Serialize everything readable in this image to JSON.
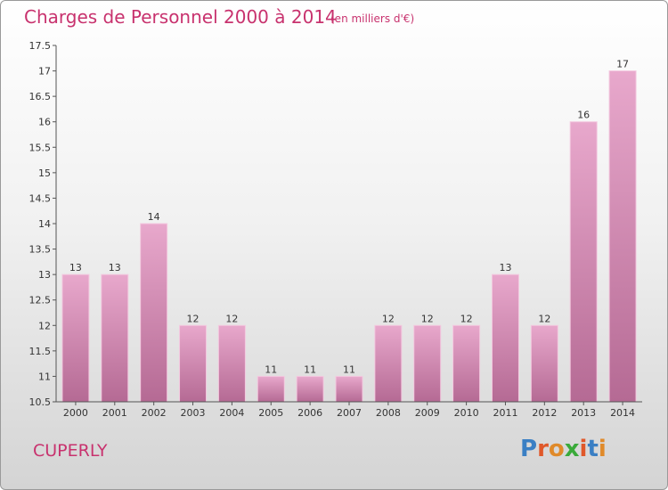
{
  "chart_data": {
    "type": "bar",
    "title": "Charges de Personnel 2000 à 2014",
    "subtitle": "(en milliers d'€)",
    "xlabel": "",
    "ylabel": "",
    "categories": [
      "2000",
      "2001",
      "2002",
      "2003",
      "2004",
      "2005",
      "2006",
      "2007",
      "2008",
      "2009",
      "2010",
      "2011",
      "2012",
      "2013",
      "2014"
    ],
    "values": [
      13,
      13,
      14,
      12,
      12,
      11,
      11,
      11,
      12,
      12,
      12,
      13,
      12,
      16,
      17
    ],
    "data_labels": [
      "13",
      "13",
      "14",
      "12",
      "12",
      "11",
      "11",
      "11",
      "12",
      "12",
      "12",
      "13",
      "12",
      "16",
      "17"
    ],
    "y_ticks": [
      "10.5",
      "11",
      "11.5",
      "12",
      "12.5",
      "13",
      "13.5",
      "14",
      "14.5",
      "15",
      "15.5",
      "16",
      "16.5",
      "17",
      "17.5"
    ],
    "ylim": [
      10.5,
      17.5
    ],
    "grid": false,
    "bar_color": "#d98fb8"
  },
  "place_name": "CUPERLY",
  "logo": {
    "letters": [
      "P",
      "r",
      "o",
      "x",
      "i",
      "t",
      "i"
    ],
    "colors": [
      "#3a7fc4",
      "#e0582a",
      "#e08a2a",
      "#3aaa3a",
      "#e0582a",
      "#3a7fc4",
      "#e08a2a"
    ]
  }
}
